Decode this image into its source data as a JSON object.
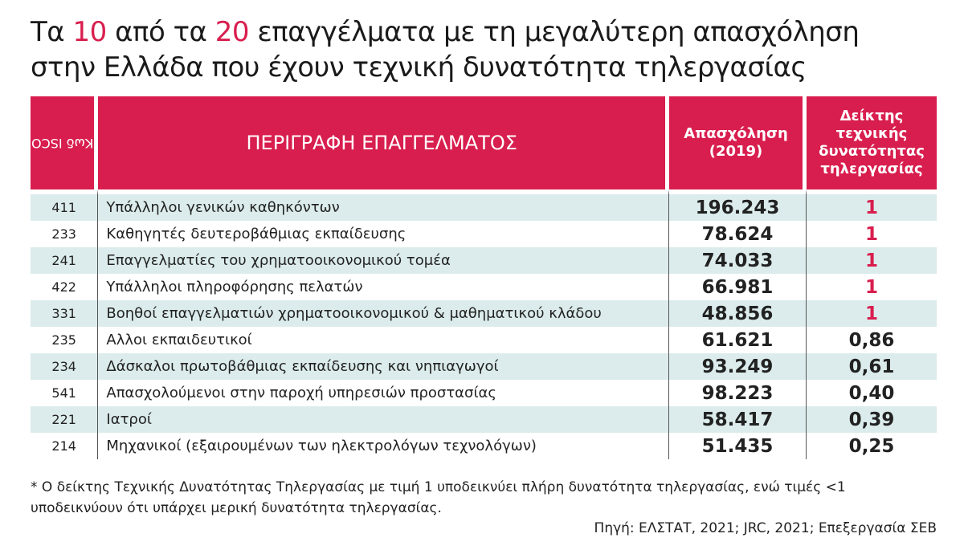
{
  "title": {
    "line1": [
      "Τα",
      "10",
      "από τα",
      "20",
      "επαγγέλματα με τη μεγαλύτερη απασχόληση"
    ],
    "line2": "στην Ελλάδα που έχουν τεχνική δυνατότητα τηλεργασίας"
  },
  "table": {
    "headers": [
      [
        "Κωδ ISCO"
      ],
      [
        "ΠΕΡΙΓΡΑΦΗ ΕΠΑΓΓΕΛΜΑΤΟΣ"
      ],
      [
        "Απασχόληση",
        "(2019)"
      ],
      [
        "Δείκτης",
        "τεχνικής",
        "δυνατότητας",
        "τηλεργασίας"
      ]
    ],
    "rows": [
      [
        "411",
        "Υπάλληλοι γενικών καθηκόντων",
        "196.243",
        "1"
      ],
      [
        "233",
        "Καθηγητές δευτεροβάθμιας εκπαίδευσης",
        "78.624",
        "1"
      ],
      [
        "241",
        "Επαγγελματίες του χρηματοοικονομικού τομέα",
        "74.033",
        "1"
      ],
      [
        "422",
        "Υπάλληλοι πληροφόρησης πελατών",
        "66.981",
        "1"
      ],
      [
        "331",
        "Βοηθοί επαγγελματιών χρηματοοικονομικού & μαθηματικού κλάδου",
        "48.856",
        "1"
      ],
      [
        "235",
        "Αλλοι εκπαιδευτικοί",
        "61.621",
        "0,86"
      ],
      [
        "234",
        "Δάσκαλοι πρωτοβάθμιας εκπαίδευσης και νηπιαγωγοί",
        "93.249",
        "0,61"
      ],
      [
        "541",
        "Απασχολούμενοι στην παροχή υπηρεσιών προστασίας",
        "98.223",
        "0,40"
      ],
      [
        "221",
        "Ιατροί",
        "58.417",
        "0,39"
      ],
      [
        "214",
        "Μηχανικοί (εξαιρουμένων των ηλεκτρολόγων τεχνολόγων)",
        "51.435",
        "0,25"
      ]
    ]
  },
  "footnote": "* Ο δείκτης Τεχνικής Δυνατότητας Τηλεργασίας με τιμή 1 υποδεικνύει πλήρη δυνατότητα τηλεργασίας, ενώ τιμές <1 υποδεικνύουν ότι υπάρχει μερική δυνατότητα τηλεργασίας.",
  "source": "Πηγή: ΕΛΣΤΑΤ, 2021; JRC, 2021; Επεξεργασία ΣΕΒ"
}
